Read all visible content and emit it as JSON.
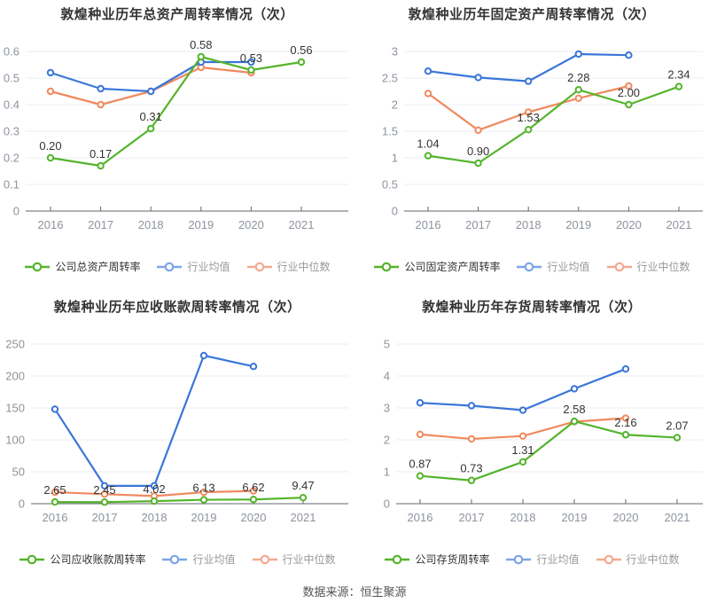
{
  "source_note": "数据来源：恒生聚源",
  "colors": {
    "company": "#55b42c",
    "industry_mean": "#3a76d8",
    "industry_median": "#f0895f",
    "legend_company": "#55b42c",
    "legend_mean": "#7ca5e8",
    "legend_median": "#f3a98e",
    "grid": "#e9edf3",
    "axis": "#62666d",
    "tick_label": "#8d939e",
    "data_label": "#333333"
  },
  "chart_data": [
    {
      "id": "total-asset-turnover",
      "type": "line",
      "title": "敦煌种业历年总资产周转率情况（次）",
      "categories": [
        "2016",
        "2017",
        "2018",
        "2019",
        "2020",
        "2021"
      ],
      "y_ticks": [
        "0",
        "0.1",
        "0.2",
        "0.3",
        "0.4",
        "0.5",
        "0.6"
      ],
      "ylim": [
        0,
        0.6
      ],
      "grid": true,
      "legend_position": "bottom",
      "series": [
        {
          "name": "公司总资产周转率",
          "role": "company",
          "values": [
            0.2,
            0.17,
            0.31,
            0.58,
            0.53,
            0.56
          ],
          "point_labels": [
            "0.20",
            "0.17",
            "0.31",
            "0.58",
            "0.53",
            "0.56"
          ]
        },
        {
          "name": "行业均值",
          "role": "mean",
          "values": [
            0.52,
            0.46,
            0.45,
            0.56,
            0.56,
            null
          ]
        },
        {
          "name": "行业中位数",
          "role": "median",
          "values": [
            0.45,
            0.4,
            0.45,
            0.54,
            0.52,
            null
          ]
        }
      ]
    },
    {
      "id": "fixed-asset-turnover",
      "type": "line",
      "title": "敦煌种业历年固定资产周转率情况（次）",
      "categories": [
        "2016",
        "2017",
        "2018",
        "2019",
        "2020",
        "2021"
      ],
      "y_ticks": [
        "0",
        "0.5",
        "1",
        "1.5",
        "2",
        "2.5",
        "3"
      ],
      "ylim": [
        0,
        3
      ],
      "grid": true,
      "legend_position": "bottom",
      "series": [
        {
          "name": "公司固定资产周转率",
          "role": "company",
          "values": [
            1.04,
            0.9,
            1.53,
            2.28,
            2.0,
            2.34
          ],
          "point_labels": [
            "1.04",
            "0.90",
            "1.53",
            "2.28",
            "2.00",
            "2.34"
          ]
        },
        {
          "name": "行业均值",
          "role": "mean",
          "values": [
            2.63,
            2.51,
            2.44,
            2.95,
            2.93,
            null
          ]
        },
        {
          "name": "行业中位数",
          "role": "median",
          "values": [
            2.21,
            1.52,
            1.86,
            2.12,
            2.35,
            null
          ]
        }
      ]
    },
    {
      "id": "receivables-turnover",
      "type": "line",
      "title": "敦煌种业历年应收账款周转率情况（次）",
      "categories": [
        "2016",
        "2017",
        "2018",
        "2019",
        "2020",
        "2021"
      ],
      "y_ticks": [
        "0",
        "50",
        "100",
        "150",
        "200",
        "250"
      ],
      "ylim": [
        0,
        250
      ],
      "grid": true,
      "legend_position": "bottom",
      "series": [
        {
          "name": "公司应收账款周转率",
          "role": "company",
          "values": [
            2.65,
            2.45,
            4.02,
            6.13,
            6.62,
            9.47
          ],
          "point_labels": [
            "2.65",
            "2.45",
            "4.02",
            "6.13",
            "6.62",
            "9.47"
          ]
        },
        {
          "name": "行业均值",
          "role": "mean",
          "values": [
            148,
            28,
            28,
            232,
            215,
            null
          ]
        },
        {
          "name": "行业中位数",
          "role": "median",
          "values": [
            18,
            15,
            12,
            18,
            20,
            null
          ]
        }
      ]
    },
    {
      "id": "inventory-turnover",
      "type": "line",
      "title": "敦煌种业历年存货周转率情况（次）",
      "categories": [
        "2016",
        "2017",
        "2018",
        "2019",
        "2020",
        "2021"
      ],
      "y_ticks": [
        "0",
        "1",
        "2",
        "3",
        "4",
        "5"
      ],
      "ylim": [
        0,
        5
      ],
      "grid": true,
      "legend_position": "bottom",
      "series": [
        {
          "name": "公司存货周转率",
          "role": "company",
          "values": [
            0.87,
            0.73,
            1.31,
            2.58,
            2.16,
            2.07
          ],
          "point_labels": [
            "0.87",
            "0.73",
            "1.31",
            "2.58",
            "2.16",
            "2.07"
          ]
        },
        {
          "name": "行业均值",
          "role": "mean",
          "values": [
            3.16,
            3.07,
            2.93,
            3.6,
            4.22,
            null
          ]
        },
        {
          "name": "行业中位数",
          "role": "median",
          "values": [
            2.17,
            2.03,
            2.12,
            2.57,
            2.68,
            null
          ]
        }
      ]
    }
  ]
}
